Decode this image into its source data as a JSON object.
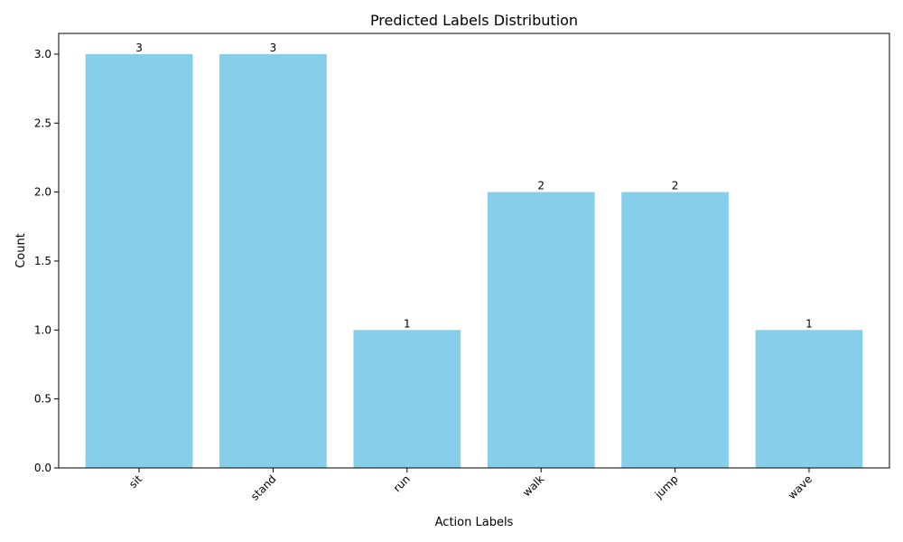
{
  "chart_data": {
    "type": "bar",
    "title": "Predicted Labels Distribution",
    "xlabel": "Action Labels",
    "ylabel": "Count",
    "categories": [
      "sit",
      "stand",
      "run",
      "walk",
      "jump",
      "wave"
    ],
    "values": [
      3,
      3,
      1,
      2,
      2,
      1
    ],
    "value_labels": [
      "3",
      "3",
      "1",
      "2",
      "2",
      "1"
    ],
    "ylim": [
      0,
      3.15
    ],
    "yticks": [
      0.0,
      0.5,
      1.0,
      1.5,
      2.0,
      2.5,
      3.0
    ],
    "ytick_labels": [
      "0.0",
      "0.5",
      "1.0",
      "1.5",
      "2.0",
      "2.5",
      "3.0"
    ],
    "bar_color": "#87CEEB",
    "grid": false,
    "xtick_rotation": 45
  }
}
